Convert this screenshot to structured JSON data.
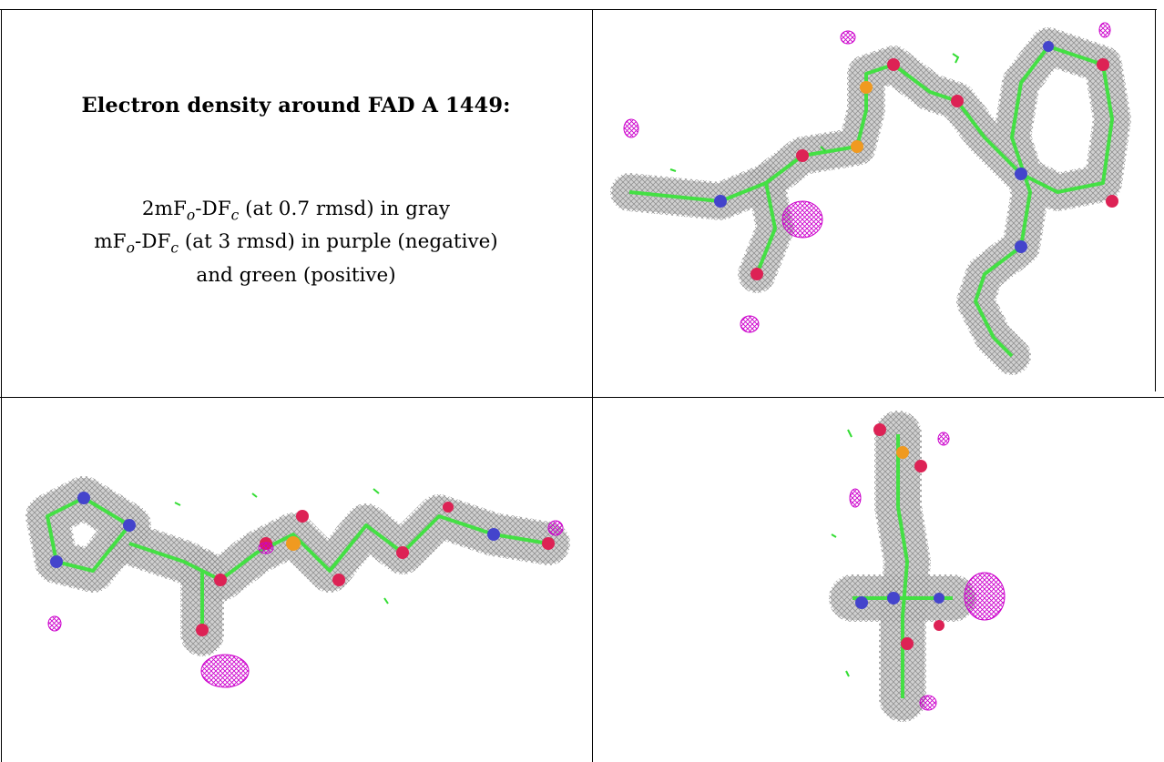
{
  "title": "Electron density around FAD A 1449:",
  "legend": {
    "line1": {
      "a": "2mF",
      "a_sub": "o",
      "b": "-DF",
      "b_sub": "c",
      "rest": " (at 0.7 rmsd) in gray"
    },
    "line2": {
      "a": "mF",
      "a_sub": "o",
      "b": "-DF",
      "b_sub": "c",
      "rest": " (at 3 rmsd) in purple (negative)"
    },
    "line3": "and green (positive)"
  },
  "colors": {
    "density_mesh": "#9a9a9a",
    "negative_difference": "#cc00cc",
    "positive_difference": "#33dd33",
    "carbon": "#44e044",
    "oxygen": "#dd2255",
    "nitrogen": "#4444cc",
    "phosphorus": "#f09a20"
  },
  "panels": [
    {
      "view": "top-right",
      "icon": "fad-density-view-1-icon"
    },
    {
      "view": "bottom-left",
      "icon": "fad-density-view-2-icon"
    },
    {
      "view": "bottom-right",
      "icon": "fad-density-view-3-icon"
    }
  ]
}
